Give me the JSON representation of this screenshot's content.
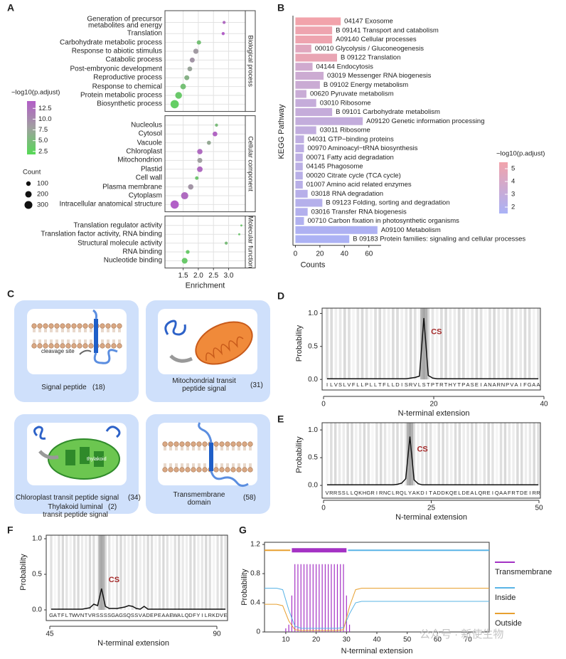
{
  "panel_labels": [
    "A",
    "B",
    "C",
    "D",
    "E",
    "F",
    "G"
  ],
  "watermark": "公众号 · 新使生物",
  "diagram": {
    "boxes": [
      {
        "label": "Signal peptide",
        "count": "(18)",
        "note": "cleavage site"
      },
      {
        "label": "Mitochondrial transit\npeptide signal",
        "count": "(31)"
      },
      {
        "label": "Chloroplast transit peptide signal",
        "count": "(34)",
        "sublabel": "Thylakoid luminal\ntransit peptide signal",
        "subcount": "(2)",
        "note": "thylakoid"
      },
      {
        "label": "Transmembrane\ndomain",
        "count": "(58)"
      }
    ]
  },
  "chart_data": [
    {
      "type": "dotplot",
      "xlabel": "Enrichment",
      "xlim": [
        0.9,
        3.55
      ],
      "xticks": [
        1.5,
        {
          "value": 2,
          "label": "2.0"
        },
        2.5,
        {
          "value": 3,
          "label": "3.0"
        }
      ],
      "color_label": "−log10(p.adjust)",
      "clim": [
        1.8,
        14.2
      ],
      "cticks": [
        2.5,
        {
          "value": 5,
          "label": "5.0"
        },
        7.5,
        {
          "value": 10,
          "label": "10.0"
        },
        12.5
      ],
      "colors": [
        "#55d955",
        "#a0a0a0",
        "#b35ec8"
      ],
      "size_label": "Count",
      "size_ticks": [
        100,
        200,
        300
      ],
      "facets": [
        {
          "name": "Biological process",
          "terms": [
            "Generation of precursor\nmetabolites and energy",
            "Translation",
            "Carbohydrate metabolic process",
            "Response to abiotic stimulus",
            "Catabolic process",
            "Post-embryonic development",
            "Reproductive process",
            "Response to chemical",
            "Protein metabolic process",
            "Biosynthetic process"
          ],
          "enrichment": [
            2.85,
            2.82,
            2.02,
            1.92,
            1.8,
            1.72,
            1.62,
            1.5,
            1.35,
            1.22
          ],
          "neg_log10_padj": [
            13,
            14,
            4.5,
            8.5,
            9,
            7.5,
            6,
            4.5,
            3.5,
            3
          ],
          "count": [
            45,
            45,
            90,
            130,
            120,
            110,
            120,
            150,
            220,
            330
          ]
        },
        {
          "name": "Cellular component",
          "terms": [
            "Nucleolus",
            "Cytosol",
            "Vacuole",
            "Chloroplast",
            "Mitochondrion",
            "Plastid",
            "Cell wall",
            "Plasma membrane",
            "Cytoplasm",
            "Intracellular anatomical structure"
          ],
          "enrichment": [
            2.6,
            2.55,
            2.35,
            2.05,
            2.05,
            2.05,
            1.95,
            1.75,
            1.55,
            1.22
          ],
          "neg_log10_padj": [
            5,
            13.5,
            7,
            13,
            8,
            13,
            4,
            9,
            13,
            14
          ],
          "count": [
            45,
            110,
            80,
            140,
            120,
            150,
            60,
            140,
            250,
            330
          ]
        },
        {
          "name": "Molecular function",
          "terms": [
            "Translation regulator activity",
            "Translation factor activity, RNA binding",
            "Structural molecule activity",
            "RNA binding",
            "Nucleotide binding"
          ],
          "enrichment": [
            3.42,
            3.35,
            2.92,
            1.65,
            1.55
          ],
          "neg_log10_padj": [
            4,
            4,
            5,
            3.5,
            3.5
          ],
          "count": [
            20,
            20,
            45,
            70,
            160
          ]
        }
      ]
    },
    {
      "type": "hbar",
      "ylabel": "KEGG Pathway",
      "xlabel": "Counts",
      "xlim": [
        -2,
        70
      ],
      "xticks": [
        0,
        20,
        40,
        60
      ],
      "categories": [
        "04147 Exosome",
        "B  09141 Transport and catabolism",
        "A09140 Cellular processes",
        "00010 Glycolysis / Gluconeogenesis",
        "B  09122 Translation",
        "04144 Endocytosis",
        "03019 Messenger RNA biogenesis",
        "B  09102 Energy metabolism",
        "00620 Pyruvate metabolism",
        "03010 Ribosome",
        "B  09101 Carbohydrate metabolism",
        "A09120 Genetic information processing",
        "03011 Ribosome",
        "04031 GTP−binding proteins",
        "00970 Aminoacyl−tRNA biosynthesis",
        "00071 Fatty acid degradation",
        "04145 Phagosome",
        "00020 Citrate cycle (TCA cycle)",
        "01007 Amino acid related enzymes",
        "03018 RNA degradation",
        "B  09123 Folding, sorting and degradation",
        "03016 Transfer RNA biogenesis",
        "00710 Carbon fixation in photosynthetic organisms",
        "A09100 Metabolism",
        "B  09183 Protein families: signaling and cellular processes"
      ],
      "values": [
        37,
        30,
        30,
        13,
        34,
        14,
        23,
        20,
        9,
        17,
        30,
        55,
        17,
        7,
        7,
        6,
        6,
        6,
        6,
        10,
        22,
        10,
        7,
        67,
        44
      ],
      "color_values": [
        5.5,
        5.3,
        5.3,
        4.5,
        5,
        3.6,
        3.4,
        3.3,
        3.2,
        3,
        3,
        2.9,
        2.8,
        2.6,
        2.5,
        2.5,
        2.4,
        2.3,
        2.3,
        2.2,
        2.1,
        2,
        1.9,
        1.7,
        1.6
      ],
      "color_label": "−log10(p.adjust)",
      "clim": [
        1.5,
        5.5
      ],
      "cticks": [
        2,
        3,
        4,
        5
      ],
      "colors": [
        "#aab2f6",
        "#f2a3ab"
      ]
    },
    {
      "type": "sequence",
      "ylabel": "Probability",
      "xlabel": "N-terminal extension",
      "annotation": "CS",
      "color": "#111111",
      "ylim": [
        -0.16,
        1.08
      ],
      "yticks": [
        {
          "value": 0,
          "label": "0.0"
        },
        0.5,
        {
          "value": 1,
          "label": "1.0"
        }
      ],
      "xlim": [
        0,
        40
      ],
      "xticks": [
        0,
        20,
        40
      ],
      "categories": [
        "I",
        "L",
        "V",
        "S",
        "L",
        "V",
        "F",
        "L",
        "L",
        "P",
        "L",
        "L",
        "T",
        "F",
        "L",
        "L",
        "D",
        "I",
        "S",
        "R",
        "V",
        "L",
        "S",
        "T",
        "P",
        "T",
        "R",
        "T",
        "H",
        "Y",
        "T",
        "P",
        "A",
        "S",
        "E",
        "I",
        "A",
        "N",
        "A",
        "R",
        "N",
        "P",
        "V",
        "A",
        "I",
        "F",
        "G",
        "A",
        "A"
      ],
      "values": [
        0.01,
        0.01,
        0.01,
        0.01,
        0.01,
        0.01,
        0.01,
        0.01,
        0.01,
        0.01,
        0.01,
        0.01,
        0.01,
        0.01,
        0.01,
        0.01,
        0.01,
        0.01,
        0.01,
        0.02,
        0.03,
        0.05,
        0.93,
        0.06,
        0.02,
        0.01,
        0.01,
        0.01,
        0.01,
        0.01,
        0.01,
        0.01,
        0.01,
        0.01,
        0.01,
        0.01,
        0.01,
        0.01,
        0.01,
        0.01,
        0.01,
        0.01,
        0.01,
        0.01,
        0.01,
        0.01,
        0.01,
        0.01,
        0.01
      ]
    },
    {
      "type": "sequence",
      "ylabel": "Probability",
      "xlabel": "N-terminal extension",
      "annotation": "CS",
      "color": "#111111",
      "ylim": [
        -0.23,
        1.13
      ],
      "yticks": [
        {
          "value": 0,
          "label": "0.0"
        },
        0.5,
        {
          "value": 1,
          "label": "1.0"
        }
      ],
      "xlim": [
        0,
        50
      ],
      "xticks": [
        0,
        25,
        50
      ],
      "categories": [
        "V",
        "R",
        "R",
        "S",
        "S",
        "L",
        "L",
        "Q",
        "K",
        "H",
        "G",
        "R",
        "I",
        "R",
        "N",
        "C",
        "L",
        "R",
        "Q",
        "L",
        "Y",
        "A",
        "K",
        "D",
        "I",
        "T",
        "A",
        "D",
        "D",
        "K",
        "Q",
        "E",
        "L",
        "D",
        "E",
        "A",
        "L",
        "Q",
        "R",
        "E",
        "I",
        "Q",
        "A",
        "A",
        "F",
        "R",
        "T",
        "D",
        "E",
        "I",
        "R",
        "R"
      ],
      "values": [
        0.01,
        0.01,
        0.01,
        0.01,
        0.01,
        0.01,
        0.01,
        0.01,
        0.01,
        0.01,
        0.01,
        0.01,
        0.01,
        0.01,
        0.01,
        0.01,
        0.01,
        0.02,
        0.04,
        0.12,
        0.88,
        0.1,
        0.03,
        0.01,
        0.01,
        0.01,
        0.01,
        0.01,
        0.01,
        0.01,
        0.01,
        0.01,
        0.01,
        0.01,
        0.01,
        0.01,
        0.01,
        0.01,
        0.01,
        0.01,
        0.01,
        0.01,
        0.01,
        0.01,
        0.01,
        0.01,
        0.01,
        0.01,
        0.01,
        0.01,
        0.01,
        0.01
      ]
    },
    {
      "type": "sequence",
      "ylabel": "Probability",
      "xlabel": "N-terminal extension",
      "annotation": "CS",
      "color": "#111111",
      "ylim": [
        -0.15,
        1.05
      ],
      "yticks": [
        {
          "value": 0,
          "label": "0.0"
        },
        0.5,
        {
          "value": 1,
          "label": "1.0"
        }
      ],
      "xlim": [
        45,
        90
      ],
      "xticks": [
        45,
        90
      ],
      "categories": [
        "G",
        "A",
        "T",
        "F",
        "L",
        "T",
        "W",
        "V",
        "N",
        "T",
        "V",
        "R",
        "S",
        "S",
        "S",
        "S",
        "G",
        "A",
        "G",
        "S",
        "Q",
        "S",
        "S",
        "V",
        "A",
        "D",
        "E",
        "P",
        "E",
        "A",
        "A",
        "E",
        "W",
        "A",
        "L",
        "Q",
        "D",
        "F",
        "Y",
        "I",
        "L",
        "R",
        "K",
        "D",
        "V",
        "E"
      ],
      "values": [
        0.01,
        0.01,
        0.01,
        0.01,
        0.01,
        0.01,
        0.01,
        0.01,
        0.01,
        0.02,
        0.03,
        0.08,
        0.06,
        0.3,
        0.05,
        0.02,
        0.02,
        0.02,
        0.03,
        0.04,
        0.06,
        0.05,
        0.02,
        0.01,
        0.05,
        0.01,
        0.01,
        0.01,
        0.01,
        0.01,
        0.01,
        0.01,
        0.01,
        0.01,
        0.01,
        0.01,
        0.01,
        0.01,
        0.01,
        0.01,
        0.01,
        0.01,
        0.01,
        0.01,
        0.01,
        0.01
      ]
    },
    {
      "type": "topology",
      "ylabel": "Probability",
      "xlabel": "N-terminal extension",
      "xlim": [
        3,
        77
      ],
      "xticks": [
        10,
        20,
        30,
        40,
        50,
        60,
        70
      ],
      "ylim": [
        0,
        1.23
      ],
      "yticks": [
        0,
        0.4,
        0.8,
        1.2
      ],
      "x": [
        3,
        5,
        7,
        9,
        11,
        13,
        15,
        17,
        19,
        21,
        23,
        25,
        27,
        29,
        31,
        33,
        35,
        37,
        39,
        41,
        43,
        45,
        47,
        49,
        51,
        53,
        55,
        57,
        59,
        61,
        63,
        65,
        67,
        69,
        71,
        73,
        75,
        77
      ],
      "series": [
        {
          "name": "Transmembrane",
          "color": "#a432c4",
          "style": "bars",
          "segments": [
            [
              12,
              30
            ]
          ],
          "x": [
            10,
            11,
            12,
            13,
            14,
            15,
            16,
            17,
            18,
            19,
            20,
            21,
            22,
            23,
            24,
            25,
            26,
            27,
            28,
            29,
            30,
            31
          ],
          "values": [
            0.05,
            0.1,
            0.5,
            0.93,
            0.93,
            0.93,
            0.93,
            0.93,
            0.93,
            0.93,
            0.93,
            0.93,
            0.93,
            0.93,
            0.93,
            0.93,
            0.93,
            0.93,
            0.93,
            0.93,
            0.5,
            0.1
          ]
        },
        {
          "name": "Inside",
          "color": "#5ab4e6",
          "segments": [
            [
              30.5,
              77
            ]
          ],
          "values": [
            0.6,
            0.6,
            0.6,
            0.58,
            0.3,
            0.08,
            0.05,
            0.05,
            0.05,
            0.05,
            0.05,
            0.05,
            0.05,
            0.06,
            0.25,
            0.4,
            0.42,
            0.42,
            0.42,
            0.42,
            0.42,
            0.42,
            0.42,
            0.42,
            0.42,
            0.42,
            0.42,
            0.42,
            0.42,
            0.42,
            0.42,
            0.42,
            0.42,
            0.42,
            0.42,
            0.42,
            0.42,
            0.42
          ]
        },
        {
          "name": "Outside",
          "color": "#e8a030",
          "segments": [
            [
              3,
              11.5
            ]
          ],
          "values": [
            0.38,
            0.38,
            0.38,
            0.36,
            0.15,
            0.03,
            0.02,
            0.02,
            0.02,
            0.02,
            0.02,
            0.02,
            0.02,
            0.03,
            0.35,
            0.58,
            0.6,
            0.6,
            0.6,
            0.6,
            0.6,
            0.6,
            0.6,
            0.6,
            0.6,
            0.6,
            0.6,
            0.6,
            0.6,
            0.6,
            0.6,
            0.6,
            0.6,
            0.6,
            0.6,
            0.6,
            0.6,
            0.6
          ]
        }
      ]
    }
  ]
}
